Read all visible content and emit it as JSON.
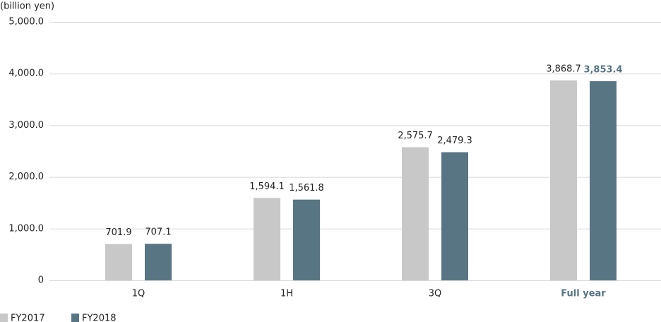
{
  "chart_data": {
    "type": "bar",
    "y_axis_label": "(billion yen)",
    "categories": [
      "1Q",
      "1H",
      "3Q",
      "Full year"
    ],
    "series": [
      {
        "name": "FY2017",
        "color": "#c8c8c8",
        "values": [
          701.9,
          1594.1,
          2575.7,
          3868.7
        ],
        "value_labels": [
          "701.9",
          "1,594.1",
          "2,575.7",
          "3,868.7"
        ]
      },
      {
        "name": "FY2018",
        "color": "#587583",
        "values": [
          707.1,
          1561.8,
          2479.3,
          3853.4
        ],
        "value_labels": [
          "707.1",
          "1,561.8",
          "2,479.3",
          "3,853.4"
        ]
      }
    ],
    "ylim": [
      0,
      5000
    ],
    "yticks": [
      0,
      {
        "value": 1000,
        "label": "1,000.0"
      },
      {
        "value": 3000,
        "label": "3,000.0"
      },
      {
        "value": 2000,
        "label": "2,000.0"
      },
      {
        "value": 4000,
        "label": "4,000.0"
      },
      {
        "value": 5000,
        "label": "5,000.0"
      }
    ],
    "grid": true
  }
}
